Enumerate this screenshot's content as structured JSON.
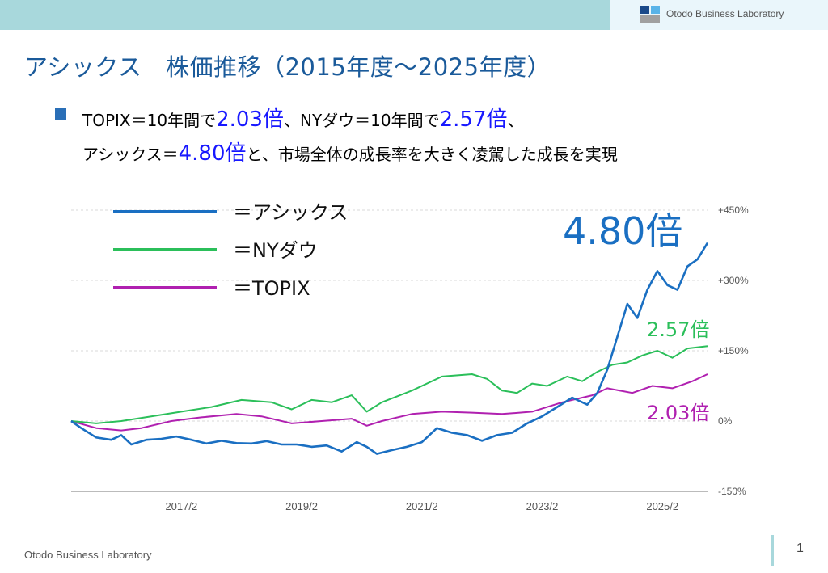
{
  "header": {
    "brand": "Otodo Business Laboratory"
  },
  "slide": {
    "title": "アシックス　株価推移（2015年度～2025年度）",
    "bullet": {
      "line1_a": "TOPIX＝10年間で",
      "line1_b": "2.03倍",
      "line1_c": "、NYダウ＝10年間で",
      "line1_d": "2.57倍",
      "line1_e": "、",
      "line2_a": "アシックス＝",
      "line2_b": "4.80倍",
      "line2_c": "と、市場全体の成長率を大きく凌駕した成長を実現"
    }
  },
  "footer": {
    "text": "Otodo Business Laboratory",
    "page": "1"
  },
  "colors": {
    "asics": "#1a6fc2",
    "nydow": "#2bbf5a",
    "topix": "#b020b0",
    "accent": "#1818ff",
    "topbar": "#a8d8dc"
  },
  "chart_data": {
    "type": "line",
    "x_ticks": [
      "2017/2",
      "2019/2",
      "2021/2",
      "2023/2",
      "2025/2"
    ],
    "y_ticks": [
      "+450%",
      "+300%",
      "+150%",
      "0%",
      "-150%"
    ],
    "y_tick_values": [
      450,
      300,
      150,
      0,
      -150
    ],
    "ylim": [
      -150,
      450
    ],
    "grid": true,
    "legend_position": "top-left",
    "series": [
      {
        "name": "＝アシックス",
        "label": "4.80倍",
        "color": "#1a6fc2",
        "points": [
          [
            "2015/4",
            0
          ],
          [
            "2015/6",
            -15
          ],
          [
            "2015/9",
            -35
          ],
          [
            "2015/12",
            -40
          ],
          [
            "2016/2",
            -30
          ],
          [
            "2016/4",
            -50
          ],
          [
            "2016/7",
            -40
          ],
          [
            "2016/10",
            -38
          ],
          [
            "2017/1",
            -33
          ],
          [
            "2017/4",
            -40
          ],
          [
            "2017/7",
            -48
          ],
          [
            "2017/10",
            -42
          ],
          [
            "2018/1",
            -47
          ],
          [
            "2018/4",
            -48
          ],
          [
            "2018/7",
            -43
          ],
          [
            "2018/10",
            -50
          ],
          [
            "2019/1",
            -50
          ],
          [
            "2019/4",
            -55
          ],
          [
            "2019/7",
            -52
          ],
          [
            "2019/10",
            -65
          ],
          [
            "2020/1",
            -45
          ],
          [
            "2020/3",
            -55
          ],
          [
            "2020/5",
            -70
          ],
          [
            "2020/8",
            -62
          ],
          [
            "2020/11",
            -55
          ],
          [
            "2021/2",
            -45
          ],
          [
            "2021/5",
            -15
          ],
          [
            "2021/8",
            -25
          ],
          [
            "2021/11",
            -30
          ],
          [
            "2022/2",
            -42
          ],
          [
            "2022/5",
            -30
          ],
          [
            "2022/8",
            -25
          ],
          [
            "2022/11",
            -5
          ],
          [
            "2023/2",
            10
          ],
          [
            "2023/5",
            30
          ],
          [
            "2023/8",
            50
          ],
          [
            "2023/11",
            35
          ],
          [
            "2024/1",
            60
          ],
          [
            "2024/3",
            110
          ],
          [
            "2024/5",
            180
          ],
          [
            "2024/7",
            250
          ],
          [
            "2024/9",
            220
          ],
          [
            "2024/11",
            280
          ],
          [
            "2025/1",
            320
          ],
          [
            "2025/3",
            290
          ],
          [
            "2025/5",
            280
          ],
          [
            "2025/7",
            330
          ],
          [
            "2025/9",
            345
          ],
          [
            "2025/11",
            380
          ]
        ]
      },
      {
        "name": "＝NYダウ",
        "label": "2.57倍",
        "color": "#2bbf5a",
        "points": [
          [
            "2015/4",
            0
          ],
          [
            "2015/9",
            -5
          ],
          [
            "2016/2",
            0
          ],
          [
            "2016/8",
            10
          ],
          [
            "2017/2",
            20
          ],
          [
            "2017/8",
            30
          ],
          [
            "2018/2",
            45
          ],
          [
            "2018/8",
            40
          ],
          [
            "2018/12",
            25
          ],
          [
            "2019/4",
            45
          ],
          [
            "2019/8",
            40
          ],
          [
            "2019/12",
            55
          ],
          [
            "2020/3",
            20
          ],
          [
            "2020/6",
            40
          ],
          [
            "2020/12",
            65
          ],
          [
            "2021/6",
            95
          ],
          [
            "2021/12",
            100
          ],
          [
            "2022/3",
            90
          ],
          [
            "2022/6",
            65
          ],
          [
            "2022/9",
            60
          ],
          [
            "2022/12",
            80
          ],
          [
            "2023/3",
            75
          ],
          [
            "2023/7",
            95
          ],
          [
            "2023/10",
            85
          ],
          [
            "2024/1",
            105
          ],
          [
            "2024/4",
            120
          ],
          [
            "2024/7",
            125
          ],
          [
            "2024/10",
            140
          ],
          [
            "2025/1",
            150
          ],
          [
            "2025/4",
            135
          ],
          [
            "2025/7",
            155
          ],
          [
            "2025/11",
            160
          ]
        ]
      },
      {
        "name": "＝TOPIX",
        "label": "2.03倍",
        "color": "#b020b0",
        "points": [
          [
            "2015/4",
            0
          ],
          [
            "2015/9",
            -15
          ],
          [
            "2016/2",
            -20
          ],
          [
            "2016/6",
            -15
          ],
          [
            "2016/12",
            0
          ],
          [
            "2017/6",
            8
          ],
          [
            "2018/1",
            15
          ],
          [
            "2018/6",
            10
          ],
          [
            "2018/12",
            -5
          ],
          [
            "2019/6",
            0
          ],
          [
            "2019/12",
            5
          ],
          [
            "2020/3",
            -10
          ],
          [
            "2020/6",
            0
          ],
          [
            "2020/12",
            15
          ],
          [
            "2021/6",
            20
          ],
          [
            "2021/12",
            18
          ],
          [
            "2022/6",
            15
          ],
          [
            "2022/12",
            20
          ],
          [
            "2023/6",
            40
          ],
          [
            "2023/12",
            55
          ],
          [
            "2024/3",
            70
          ],
          [
            "2024/8",
            60
          ],
          [
            "2024/12",
            75
          ],
          [
            "2025/4",
            70
          ],
          [
            "2025/8",
            85
          ],
          [
            "2025/11",
            100
          ]
        ]
      }
    ]
  }
}
